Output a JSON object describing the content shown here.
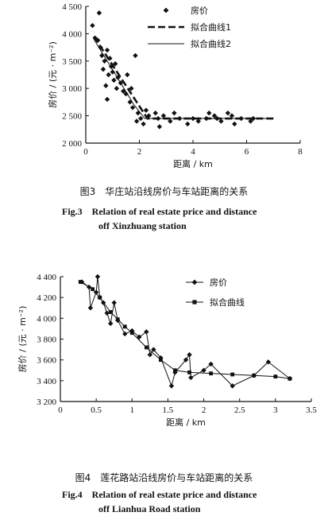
{
  "chart_data": [
    {
      "type": "scatter",
      "figure": "fig3",
      "xlabel": "距离 / km",
      "ylabel": "房价 / (元 · m⁻²)",
      "xlim": [
        0,
        8
      ],
      "ylim": [
        2000,
        4500
      ],
      "xticks": [
        "0",
        "2",
        "4",
        "6",
        "8"
      ],
      "yticks": [
        "2 000",
        "2 500",
        "3 000",
        "3 500",
        "4 000",
        "4 500"
      ],
      "legend": [
        "房价",
        "拟合曲线1",
        "拟合曲线2"
      ],
      "series": [
        {
          "name": "房价",
          "marker": "diamond",
          "points": [
            [
              0.25,
              4150
            ],
            [
              0.35,
              3920
            ],
            [
              0.45,
              3880
            ],
            [
              0.5,
              4380
            ],
            [
              0.55,
              3750
            ],
            [
              0.6,
              3600
            ],
            [
              0.65,
              3350
            ],
            [
              0.7,
              3500
            ],
            [
              0.75,
              3050
            ],
            [
              0.8,
              2800
            ],
            [
              0.8,
              3700
            ],
            [
              0.85,
              3250
            ],
            [
              0.9,
              3550
            ],
            [
              0.95,
              3400
            ],
            [
              1.0,
              3300
            ],
            [
              1.05,
              3150
            ],
            [
              1.1,
              3450
            ],
            [
              1.15,
              3000
            ],
            [
              1.2,
              3200
            ],
            [
              1.3,
              3100
            ],
            [
              1.4,
              2950
            ],
            [
              1.5,
              2900
            ],
            [
              1.55,
              3250
            ],
            [
              1.65,
              2750
            ],
            [
              1.7,
              3000
            ],
            [
              1.75,
              2650
            ],
            [
              1.85,
              3600
            ],
            [
              1.9,
              2400
            ],
            [
              1.95,
              2550
            ],
            [
              2.05,
              2450
            ],
            [
              2.15,
              2350
            ],
            [
              2.25,
              2600
            ],
            [
              2.35,
              2500
            ],
            [
              2.6,
              2550
            ],
            [
              2.7,
              2450
            ],
            [
              2.75,
              2300
            ],
            [
              2.9,
              2500
            ],
            [
              3.15,
              2400
            ],
            [
              3.3,
              2550
            ],
            [
              3.5,
              2450
            ],
            [
              3.8,
              2350
            ],
            [
              4.0,
              2450
            ],
            [
              4.2,
              2400
            ],
            [
              4.5,
              2450
            ],
            [
              4.6,
              2550
            ],
            [
              4.8,
              2500
            ],
            [
              4.9,
              2450
            ],
            [
              5.05,
              2400
            ],
            [
              5.3,
              2550
            ],
            [
              5.45,
              2500
            ],
            [
              5.55,
              2350
            ],
            [
              5.8,
              2450
            ],
            [
              6.15,
              2400
            ],
            [
              6.25,
              2450
            ]
          ]
        },
        {
          "name": "拟合曲线1",
          "style": "dashed",
          "points": [
            [
              0.3,
              3950
            ],
            [
              2.3,
              2450
            ],
            [
              7.0,
              2450
            ]
          ]
        },
        {
          "name": "拟合曲线2",
          "style": "solid",
          "points": [
            [
              0.3,
              3900
            ],
            [
              0.8,
              3500
            ],
            [
              1.3,
              3100
            ],
            [
              1.8,
              2700
            ],
            [
              2.2,
              2450
            ],
            [
              7.0,
              2450
            ]
          ]
        }
      ]
    },
    {
      "type": "line",
      "figure": "fig4",
      "xlabel": "距离 / km",
      "ylabel": "房价 / (元 · m⁻²)",
      "xlim": [
        0,
        3.5
      ],
      "ylim": [
        3200,
        4400
      ],
      "xticks": [
        "0",
        "0.5",
        "1",
        "1.5",
        "2",
        "2.5",
        "3",
        "3.5"
      ],
      "yticks": [
        "3 200",
        "3 400",
        "3 600",
        "3 800",
        "4 000",
        "4 200",
        "4 400"
      ],
      "legend": [
        "房价",
        "拟合曲线"
      ],
      "series": [
        {
          "name": "房价",
          "marker": "diamond",
          "points": [
            [
              0.3,
              4350
            ],
            [
              0.4,
              4300
            ],
            [
              0.42,
              4100
            ],
            [
              0.5,
              4250
            ],
            [
              0.52,
              4400
            ],
            [
              0.55,
              4200
            ],
            [
              0.6,
              4150
            ],
            [
              0.65,
              4050
            ],
            [
              0.7,
              3950
            ],
            [
              0.75,
              4150
            ],
            [
              0.8,
              3980
            ],
            [
              0.9,
              3850
            ],
            [
              1.0,
              3880
            ],
            [
              1.1,
              3820
            ],
            [
              1.2,
              3870
            ],
            [
              1.25,
              3650
            ],
            [
              1.3,
              3700
            ],
            [
              1.4,
              3620
            ],
            [
              1.55,
              3350
            ],
            [
              1.6,
              3480
            ],
            [
              1.75,
              3600
            ],
            [
              1.8,
              3650
            ],
            [
              1.82,
              3430
            ],
            [
              2.0,
              3500
            ],
            [
              2.1,
              3560
            ],
            [
              2.4,
              3350
            ],
            [
              2.7,
              3450
            ],
            [
              2.9,
              3580
            ],
            [
              3.2,
              3420
            ]
          ]
        },
        {
          "name": "拟合曲线",
          "marker": "square",
          "points": [
            [
              0.28,
              4350
            ],
            [
              0.45,
              4280
            ],
            [
              0.55,
              4200
            ],
            [
              0.7,
              4060
            ],
            [
              0.8,
              3990
            ],
            [
              0.9,
              3920
            ],
            [
              1.0,
              3860
            ],
            [
              1.2,
              3720
            ],
            [
              1.4,
              3600
            ],
            [
              1.6,
              3500
            ],
            [
              1.8,
              3480
            ],
            [
              2.1,
              3470
            ],
            [
              2.4,
              3460
            ],
            [
              2.7,
              3450
            ],
            [
              3.0,
              3440
            ],
            [
              3.2,
              3420
            ]
          ]
        }
      ]
    }
  ],
  "captions": {
    "fig3_zh": "图3　华庄站沿线房价与车站距离的关系",
    "fig3_en_1": "Fig.3　Relation of real estate price and distance",
    "fig3_en_2": "off Xinzhuang station",
    "fig4_zh": "图4　莲花路站沿线房价与车站距离的关系",
    "fig4_en_1": "Fig.4　Relation of real estate price and distance",
    "fig4_en_2": "off Lianhua Road station"
  }
}
